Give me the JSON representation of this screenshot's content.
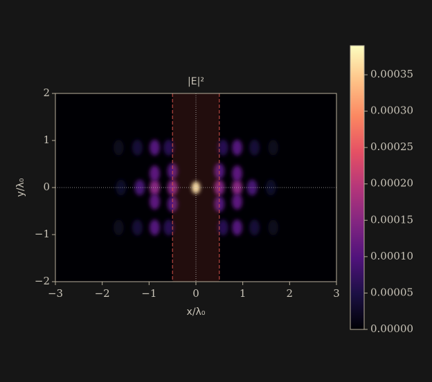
{
  "chart_data": {
    "type": "heatmap",
    "title": "|E|²",
    "xlabel": "x/λ₀",
    "ylabel": "y/λ₀",
    "x": [
      0,
      -0.5,
      0.5,
      -0.5,
      0.5,
      -0.5,
      0.5,
      -0.88,
      0.88,
      -0.88,
      0.88,
      -0.88,
      0.88,
      -1.2,
      1.2,
      -1.6,
      1.6,
      -0.88,
      0.88,
      -0.88,
      0.88,
      -0.58,
      0.58,
      -0.58,
      0.58,
      -1.25,
      1.25,
      -1.25,
      1.25,
      -1.65,
      1.65,
      -1.65,
      1.65
    ],
    "y": [
      0,
      0,
      0,
      0.35,
      0.35,
      -0.35,
      -0.35,
      0,
      0,
      0.3,
      0.3,
      -0.3,
      -0.3,
      0,
      0,
      0,
      0,
      0.85,
      0.85,
      -0.85,
      -0.85,
      0.85,
      0.85,
      -0.85,
      -0.85,
      0.85,
      0.85,
      -0.85,
      -0.85,
      0.85,
      0.85,
      -0.85,
      -0.85
    ],
    "values": [
      0.00038,
      0.00014,
      0.00014,
      0.0001,
      0.0001,
      0.0001,
      0.0001,
      0.00015,
      0.00015,
      0.00011,
      0.00011,
      0.00011,
      0.00011,
      9e-05,
      9e-05,
      3e-05,
      3e-05,
      0.0001,
      0.0001,
      0.0001,
      0.0001,
      6e-05,
      6e-05,
      6e-05,
      6e-05,
      4e-05,
      4e-05,
      4e-05,
      4e-05,
      2e-05,
      2e-05,
      2e-05,
      2e-05
    ],
    "xlim": [
      -3,
      3
    ],
    "ylim": [
      -2,
      2
    ],
    "xticks": [
      {
        "value": -3,
        "label": "−3"
      },
      {
        "value": -2,
        "label": "−2"
      },
      {
        "value": -1,
        "label": "−1"
      },
      0,
      1,
      2,
      3
    ],
    "yticks": [
      {
        "value": -2,
        "label": "−2"
      },
      {
        "value": -1,
        "label": "−1"
      },
      0,
      1,
      2
    ],
    "band": [
      -0.5,
      0.5
    ],
    "guides": {
      "x": 0,
      "y": 0
    },
    "colormap": "magma",
    "clim": [
      0,
      0.00039
    ],
    "cticks": [
      {
        "value": 0,
        "label": "0.00000"
      },
      {
        "value": 5e-05,
        "label": "0.00005"
      },
      {
        "value": 0.0001,
        "label": "0.00010"
      },
      {
        "value": 0.00015,
        "label": "0.00015"
      },
      {
        "value": 0.0002,
        "label": "0.00020"
      },
      {
        "value": 0.00025,
        "label": "0.00025"
      },
      {
        "value": 0.0003,
        "label": "0.00030"
      },
      {
        "value": 0.00035,
        "label": "0.00035"
      }
    ]
  }
}
